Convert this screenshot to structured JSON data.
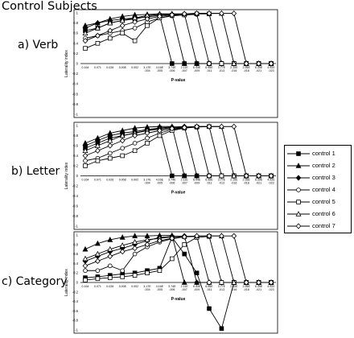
{
  "page_title": "Control Subjects",
  "legend": [
    "control 1",
    "control 2",
    "control 3",
    "control 4",
    "control 5",
    "control 6",
    "control 7"
  ],
  "chart_data": [
    {
      "type": "line",
      "panel_label": "a) Verb",
      "xlabel": "P-value",
      "ylabel": "Laterality index",
      "ylim": [
        -1,
        1
      ],
      "yticks": [
        1,
        0.8,
        0.6,
        0.4,
        0.2,
        0,
        -0.2,
        -0.4,
        -0.6,
        -0.8,
        -1
      ],
      "categories": [
        "0.164",
        "0.071",
        "0.026",
        "0.008",
        "0.002",
        "3.17E-004",
        "4.16E-005",
        "3.74E-006",
        "2.11E-007",
        "6.44E-009",
        "6.96E-011",
        "3.77E-013",
        "2.10E-016",
        "2.56E-018",
        "6.39E-021",
        "4.92E-023"
      ],
      "series": [
        {
          "name": "control 1",
          "values": [
            0.65,
            0.7,
            0.8,
            0.85,
            0.88,
            0.93,
            0.95,
            0,
            0,
            0,
            0,
            0,
            0,
            0,
            0,
            0
          ]
        },
        {
          "name": "control 2",
          "values": [
            0.75,
            0.8,
            0.88,
            0.93,
            0.96,
            0.97,
            0.98,
            0.98,
            0,
            0,
            0,
            0,
            0,
            0,
            0,
            0
          ]
        },
        {
          "name": "control 3",
          "values": [
            0.7,
            0.8,
            0.85,
            0.88,
            0.9,
            0.92,
            0.95,
            0.97,
            0.98,
            0,
            0,
            0,
            0,
            0,
            0,
            0
          ]
        },
        {
          "name": "control 4",
          "values": [
            0.5,
            0.55,
            0.6,
            0.65,
            0.7,
            0.82,
            0.9,
            0.94,
            0.96,
            0.97,
            0,
            0,
            0,
            0,
            0,
            0
          ]
        },
        {
          "name": "control 5",
          "values": [
            0.3,
            0.4,
            0.5,
            0.6,
            0.45,
            0.75,
            0.9,
            0.95,
            0.96,
            0.98,
            0.98,
            0,
            0,
            0,
            0,
            0
          ]
        },
        {
          "name": "control 6",
          "values": [
            0.6,
            0.7,
            0.8,
            0.85,
            0.9,
            0.95,
            0.97,
            0.98,
            0.98,
            0.99,
            0.99,
            0.99,
            0,
            0,
            0,
            0
          ]
        },
        {
          "name": "control 7",
          "values": [
            0.45,
            0.55,
            0.65,
            0.75,
            0.82,
            0.88,
            0.93,
            0.96,
            0.98,
            0.99,
            0.99,
            0.99,
            0.99,
            0,
            0,
            0
          ]
        }
      ]
    },
    {
      "type": "line",
      "panel_label": "b) Letter",
      "xlabel": "P-value",
      "ylabel": "Laterality index",
      "ylim": [
        -1,
        1
      ],
      "yticks": [
        1,
        0.8,
        0.6,
        0.4,
        0.2,
        0,
        -0.2,
        -0.4,
        -0.6,
        -0.8,
        -1
      ],
      "categories": [
        "0.164",
        "0.071",
        "0.026",
        "0.008",
        "0.002",
        "3.17E-004",
        "4.16E-005",
        "3.74E-006",
        "2.11E-007",
        "6.44E-009",
        "6.96E-011",
        "3.77E-013",
        "2.10E-016",
        "2.56E-018",
        "6.39E-021",
        "4.92E-023"
      ],
      "series": [
        {
          "name": "control 1",
          "values": [
            0.55,
            0.65,
            0.75,
            0.8,
            0.85,
            0.9,
            0.95,
            0,
            0,
            0,
            0,
            0,
            0,
            0,
            0,
            0
          ]
        },
        {
          "name": "control 2",
          "values": [
            0.65,
            0.75,
            0.85,
            0.9,
            0.95,
            0.97,
            0.98,
            0.98,
            0,
            0,
            0,
            0,
            0,
            0,
            0,
            0
          ]
        },
        {
          "name": "control 3",
          "values": [
            0.6,
            0.7,
            0.8,
            0.85,
            0.88,
            0.92,
            0.95,
            0.97,
            0.98,
            0,
            0,
            0,
            0,
            0,
            0,
            0
          ]
        },
        {
          "name": "control 4",
          "values": [
            0.3,
            0.35,
            0.45,
            0.55,
            0.65,
            0.75,
            0.85,
            0.92,
            0.96,
            0.98,
            0,
            0,
            0,
            0,
            0,
            0
          ]
        },
        {
          "name": "control 5",
          "values": [
            0.2,
            0.3,
            0.35,
            0.4,
            0.5,
            0.65,
            0.8,
            0.9,
            0.95,
            0.97,
            0.98,
            0,
            0,
            0,
            0,
            0
          ]
        },
        {
          "name": "control 6",
          "values": [
            0.5,
            0.6,
            0.7,
            0.8,
            0.85,
            0.9,
            0.93,
            0.96,
            0.97,
            0.98,
            0.98,
            0.98,
            0,
            0,
            0,
            0
          ]
        },
        {
          "name": "control 7",
          "values": [
            0.4,
            0.5,
            0.6,
            0.7,
            0.8,
            0.85,
            0.9,
            0.94,
            0.96,
            0.98,
            0.98,
            0.98,
            0.98,
            0,
            0,
            0
          ]
        }
      ]
    },
    {
      "type": "line",
      "panel_label": "c) Category",
      "xlabel": "P-value",
      "ylabel": "Laterality index",
      "ylim": [
        -1,
        1
      ],
      "yticks": [
        1,
        0.8,
        0.6,
        0.4,
        0.2,
        0,
        -0.2,
        -0.4,
        -0.6,
        -0.8,
        -1
      ],
      "categories": [
        "0.164",
        "0.071",
        "0.026",
        "0.008",
        "0.002",
        "3.17E-004",
        "4.16E-005",
        "3.74E-006",
        "2.11E-007",
        "6.44E-009",
        "6.96E-011",
        "3.77E-013",
        "2.10E-016",
        "2.56E-018",
        "6.39E-021",
        "4.92E-023"
      ],
      "series": [
        {
          "name": "control 1",
          "values": [
            0.1,
            0.12,
            0.15,
            0.18,
            0.2,
            0.25,
            0.3,
            0.95,
            0.6,
            0.2,
            -0.55,
            -0.97,
            0,
            0,
            0,
            0
          ]
        },
        {
          "name": "control 2",
          "values": [
            0.7,
            0.82,
            0.9,
            0.95,
            0.98,
            0.98,
            0.99,
            0.99,
            0,
            0,
            0,
            0,
            0,
            0,
            0,
            0
          ]
        },
        {
          "name": "control 3",
          "values": [
            0.45,
            0.55,
            0.65,
            0.72,
            0.8,
            0.88,
            0.95,
            0.97,
            0.98,
            0,
            0,
            0,
            0,
            0,
            0,
            0
          ]
        },
        {
          "name": "control 4",
          "values": [
            0.25,
            0.25,
            0.35,
            0.25,
            0.6,
            0.75,
            0.85,
            0.92,
            0.96,
            0.97,
            0,
            0,
            0,
            0,
            0,
            0
          ]
        },
        {
          "name": "control 5",
          "values": [
            0.05,
            0.08,
            0.1,
            0.12,
            0.15,
            0.2,
            0.25,
            0.5,
            0.8,
            0.95,
            0.97,
            0,
            0,
            0,
            0,
            0
          ]
        },
        {
          "name": "control 6",
          "values": [
            0.5,
            0.6,
            0.7,
            0.78,
            0.85,
            0.9,
            0.93,
            0.96,
            0.97,
            0.98,
            0.98,
            0.98,
            0,
            0,
            0,
            0
          ]
        },
        {
          "name": "control 7",
          "values": [
            0.35,
            0.45,
            0.55,
            0.65,
            0.72,
            0.8,
            0.88,
            0.93,
            0.96,
            0.98,
            0.98,
            0.98,
            0.98,
            0,
            0,
            0
          ]
        }
      ]
    }
  ]
}
